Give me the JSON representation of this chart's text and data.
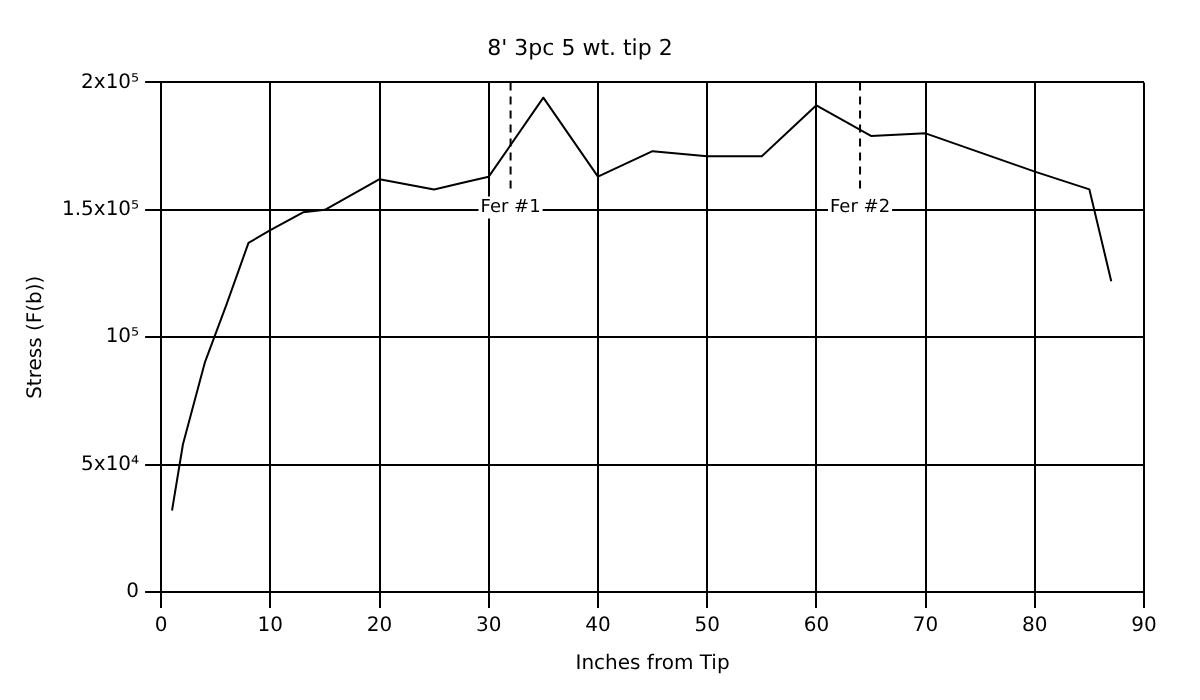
{
  "chart_data": {
    "type": "line",
    "title": "8' 3pc 5 wt. tip 2",
    "xlabel": "Inches from Tip",
    "ylabel": "Stress (F(b))",
    "x": [
      1,
      2,
      4,
      6,
      8,
      10,
      13,
      15,
      20,
      25,
      28,
      30,
      35,
      40,
      45,
      50,
      55,
      60,
      65,
      70,
      80,
      85,
      87
    ],
    "series": [
      {
        "color": "#000000",
        "values": [
          32000,
          58000,
          90000,
          113000,
          137000,
          142000,
          149000,
          150000,
          162000,
          158000,
          161000,
          163000,
          194000,
          163000,
          173000,
          171000,
          171000,
          191000,
          179000,
          180000,
          165000,
          158000,
          122000
        ]
      }
    ],
    "xlim": [
      0,
      90
    ],
    "xticks": [
      0,
      10,
      20,
      30,
      40,
      50,
      60,
      70,
      80,
      90
    ],
    "ylim": [
      0,
      200000
    ],
    "yticks": [
      0,
      {
        "value": 50000,
        "label": "5x10⁴"
      },
      {
        "value": 100000,
        "label": "10⁵"
      },
      {
        "value": 150000,
        "label": "1.5x10⁵"
      },
      {
        "value": 200000,
        "label": "2x10⁵"
      }
    ],
    "ref_lines": [
      {
        "axis": "x",
        "value": 32,
        "label": "Fer #1",
        "line_style": "dashed",
        "color": "#000000"
      },
      {
        "axis": "x",
        "value": 64,
        "label": "Fer #2",
        "line_style": "dashed",
        "color": "#000000"
      }
    ],
    "grid": true,
    "legend": false,
    "marker": "none",
    "line_style": "solid"
  }
}
